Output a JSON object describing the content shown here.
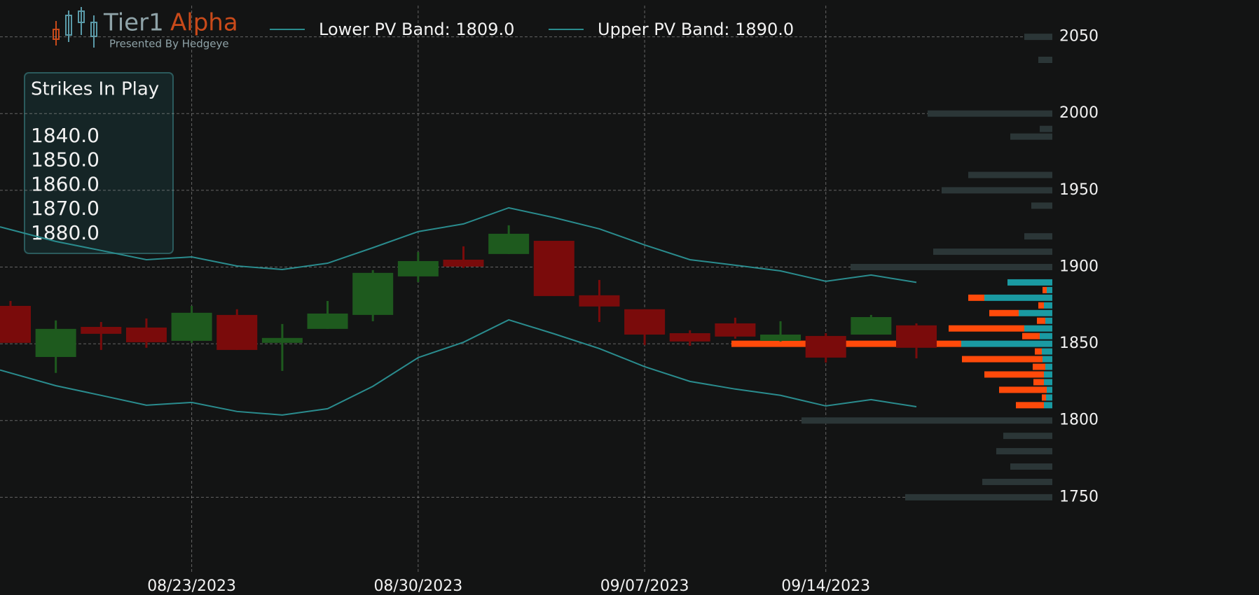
{
  "brand": {
    "title_a": "Tier1",
    "title_b": "Alpha",
    "subtitle": "Presented By Hedgeye"
  },
  "strikes_box": {
    "title": "Strikes In Play",
    "items": [
      "1840.0",
      "1850.0",
      "1860.0",
      "1870.0",
      "1880.0"
    ]
  },
  "chart_data": {
    "type": "candlestick",
    "categories": [
      null,
      null,
      null,
      null,
      "08/23/2023",
      null,
      null,
      null,
      null,
      "08/30/2023",
      null,
      null,
      null,
      null,
      "09/07/2023",
      null,
      null,
      null,
      "09/14/2023",
      null,
      null
    ],
    "open": [
      1874.7,
      1841.4,
      1861.0,
      1860.6,
      1851.9,
      1868.8,
      1850.6,
      1859.7,
      1868.8,
      1893.9,
      1904.8,
      1908.5,
      1917.1,
      1881.6,
      1872.5,
      1856.9,
      1863.3,
      1851.9,
      1855.1,
      1856.0,
      1862.0
    ],
    "high": [
      1877.9,
      1865.2,
      1864.2,
      1866.5,
      1874.7,
      1872.5,
      1862.9,
      1877.9,
      1898.0,
      1909.8,
      1913.5,
      1927.2,
      1917.1,
      1891.6,
      1872.5,
      1858.8,
      1867.0,
      1864.7,
      1856.9,
      1868.8,
      1863.3
    ],
    "low": [
      1850.6,
      1831.0,
      1846.0,
      1847.4,
      1850.6,
      1846.0,
      1832.3,
      1859.7,
      1864.7,
      1890.2,
      1899.4,
      1908.5,
      1881.1,
      1864.2,
      1849.2,
      1848.7,
      1853.3,
      1851.5,
      1837.8,
      1856.0,
      1840.5
    ],
    "close": [
      1850.6,
      1859.7,
      1856.5,
      1851.0,
      1870.2,
      1846.0,
      1853.8,
      1869.7,
      1896.2,
      1903.9,
      1900.3,
      1921.7,
      1881.1,
      1874.3,
      1856.0,
      1851.5,
      1854.7,
      1856.0,
      1841.0,
      1867.4,
      1847.4
    ],
    "up_color": "#1e5a1e",
    "down_color": "#7a0b0b",
    "series": [
      {
        "name": "Lower PV Band: 1809.0",
        "color": "#2a8c8e",
        "values": [
          1831.0,
          1822.7,
          1816.4,
          1810.0,
          1811.8,
          1805.9,
          1803.6,
          1807.7,
          1822.3,
          1841.0,
          1851.0,
          1865.6,
          1856.5,
          1846.9,
          1835.1,
          1825.5,
          1820.5,
          1816.4,
          1809.5,
          1813.6,
          1809.0
        ]
      },
      {
        "name": "Upper PV Band: 1890.0",
        "color": "#2a8c8e",
        "values": [
          1924.4,
          1916.7,
          1910.8,
          1904.8,
          1906.6,
          1900.7,
          1898.4,
          1902.5,
          1912.6,
          1923.1,
          1928.1,
          1938.6,
          1932.2,
          1924.9,
          1914.4,
          1904.8,
          1901.2,
          1897.5,
          1890.7,
          1894.8,
          1890.0
        ]
      }
    ],
    "profile": {
      "strikes": [
        1890,
        1885,
        1880,
        1875,
        1870,
        1865,
        1860,
        1855,
        1850,
        1845,
        1840,
        1835,
        1830,
        1825,
        1820,
        1815,
        1810
      ],
      "teal": [
        64,
        8,
        97,
        12,
        48,
        10,
        40,
        18,
        130,
        15,
        14,
        10,
        12,
        12,
        8,
        9,
        12
      ],
      "orange": [
        0,
        6,
        23,
        8,
        42,
        12,
        108,
        25,
        328,
        10,
        115,
        18,
        85,
        15,
        68,
        6,
        40
      ],
      "teal_color": "#1a9aa2",
      "orange_color": "#ff4a0a",
      "gray_strikes": [
        2050,
        2035,
        2000,
        1990,
        1985,
        1960,
        1950,
        1940,
        1920,
        1910,
        1900,
        1800,
        1790,
        1780,
        1770,
        1760,
        1750
      ],
      "gray": [
        40,
        20,
        178,
        18,
        60,
        120,
        158,
        30,
        40,
        170,
        288,
        358,
        70,
        80,
        60,
        100,
        210
      ],
      "gray_color": "#2b3637"
    },
    "ylim": [
      1700,
      2074
    ],
    "yticks": [
      1750,
      1800,
      1850,
      1900,
      1950,
      2000,
      2050
    ],
    "grid": true
  }
}
